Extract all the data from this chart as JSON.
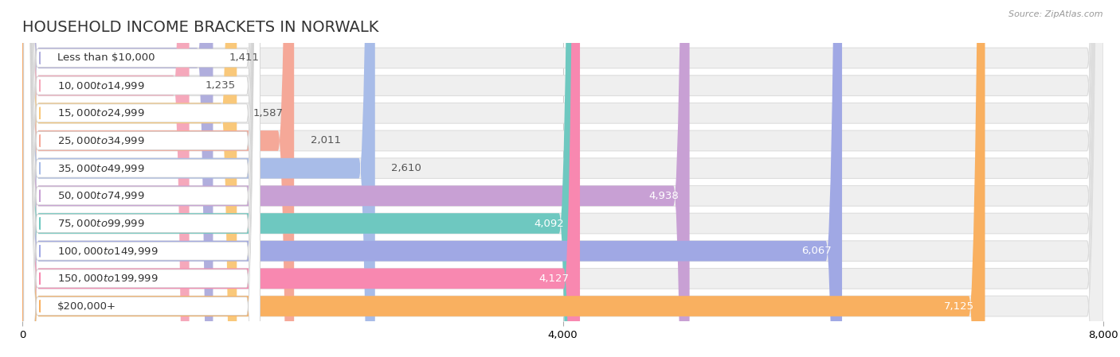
{
  "title": "HOUSEHOLD INCOME BRACKETS IN NORWALK",
  "source": "Source: ZipAtlas.com",
  "categories": [
    "Less than $10,000",
    "$10,000 to $14,999",
    "$15,000 to $24,999",
    "$25,000 to $34,999",
    "$35,000 to $49,999",
    "$50,000 to $74,999",
    "$75,000 to $99,999",
    "$100,000 to $149,999",
    "$150,000 to $199,999",
    "$200,000+"
  ],
  "values": [
    1411,
    1235,
    1587,
    2011,
    2610,
    4938,
    4092,
    6067,
    4127,
    7125
  ],
  "bar_colors": [
    "#b0aedd",
    "#f5a8bb",
    "#f9c87a",
    "#f5a898",
    "#a8bce8",
    "#c8a0d4",
    "#6ec8c0",
    "#a0a8e4",
    "#f888b0",
    "#f9b060"
  ],
  "bar_bg_color": "#efefef",
  "bar_bg_border_color": "#dddddd",
  "label_color_inside": "#ffffff",
  "label_color_outside": "#555555",
  "value_color_dark": "#555555",
  "xlim": [
    0,
    8000
  ],
  "xticks": [
    0,
    4000,
    8000
  ],
  "background_color": "#ffffff",
  "title_fontsize": 14,
  "label_fontsize": 9.5,
  "tick_fontsize": 9.5,
  "value_fontsize": 9.5,
  "value_threshold": 3200
}
